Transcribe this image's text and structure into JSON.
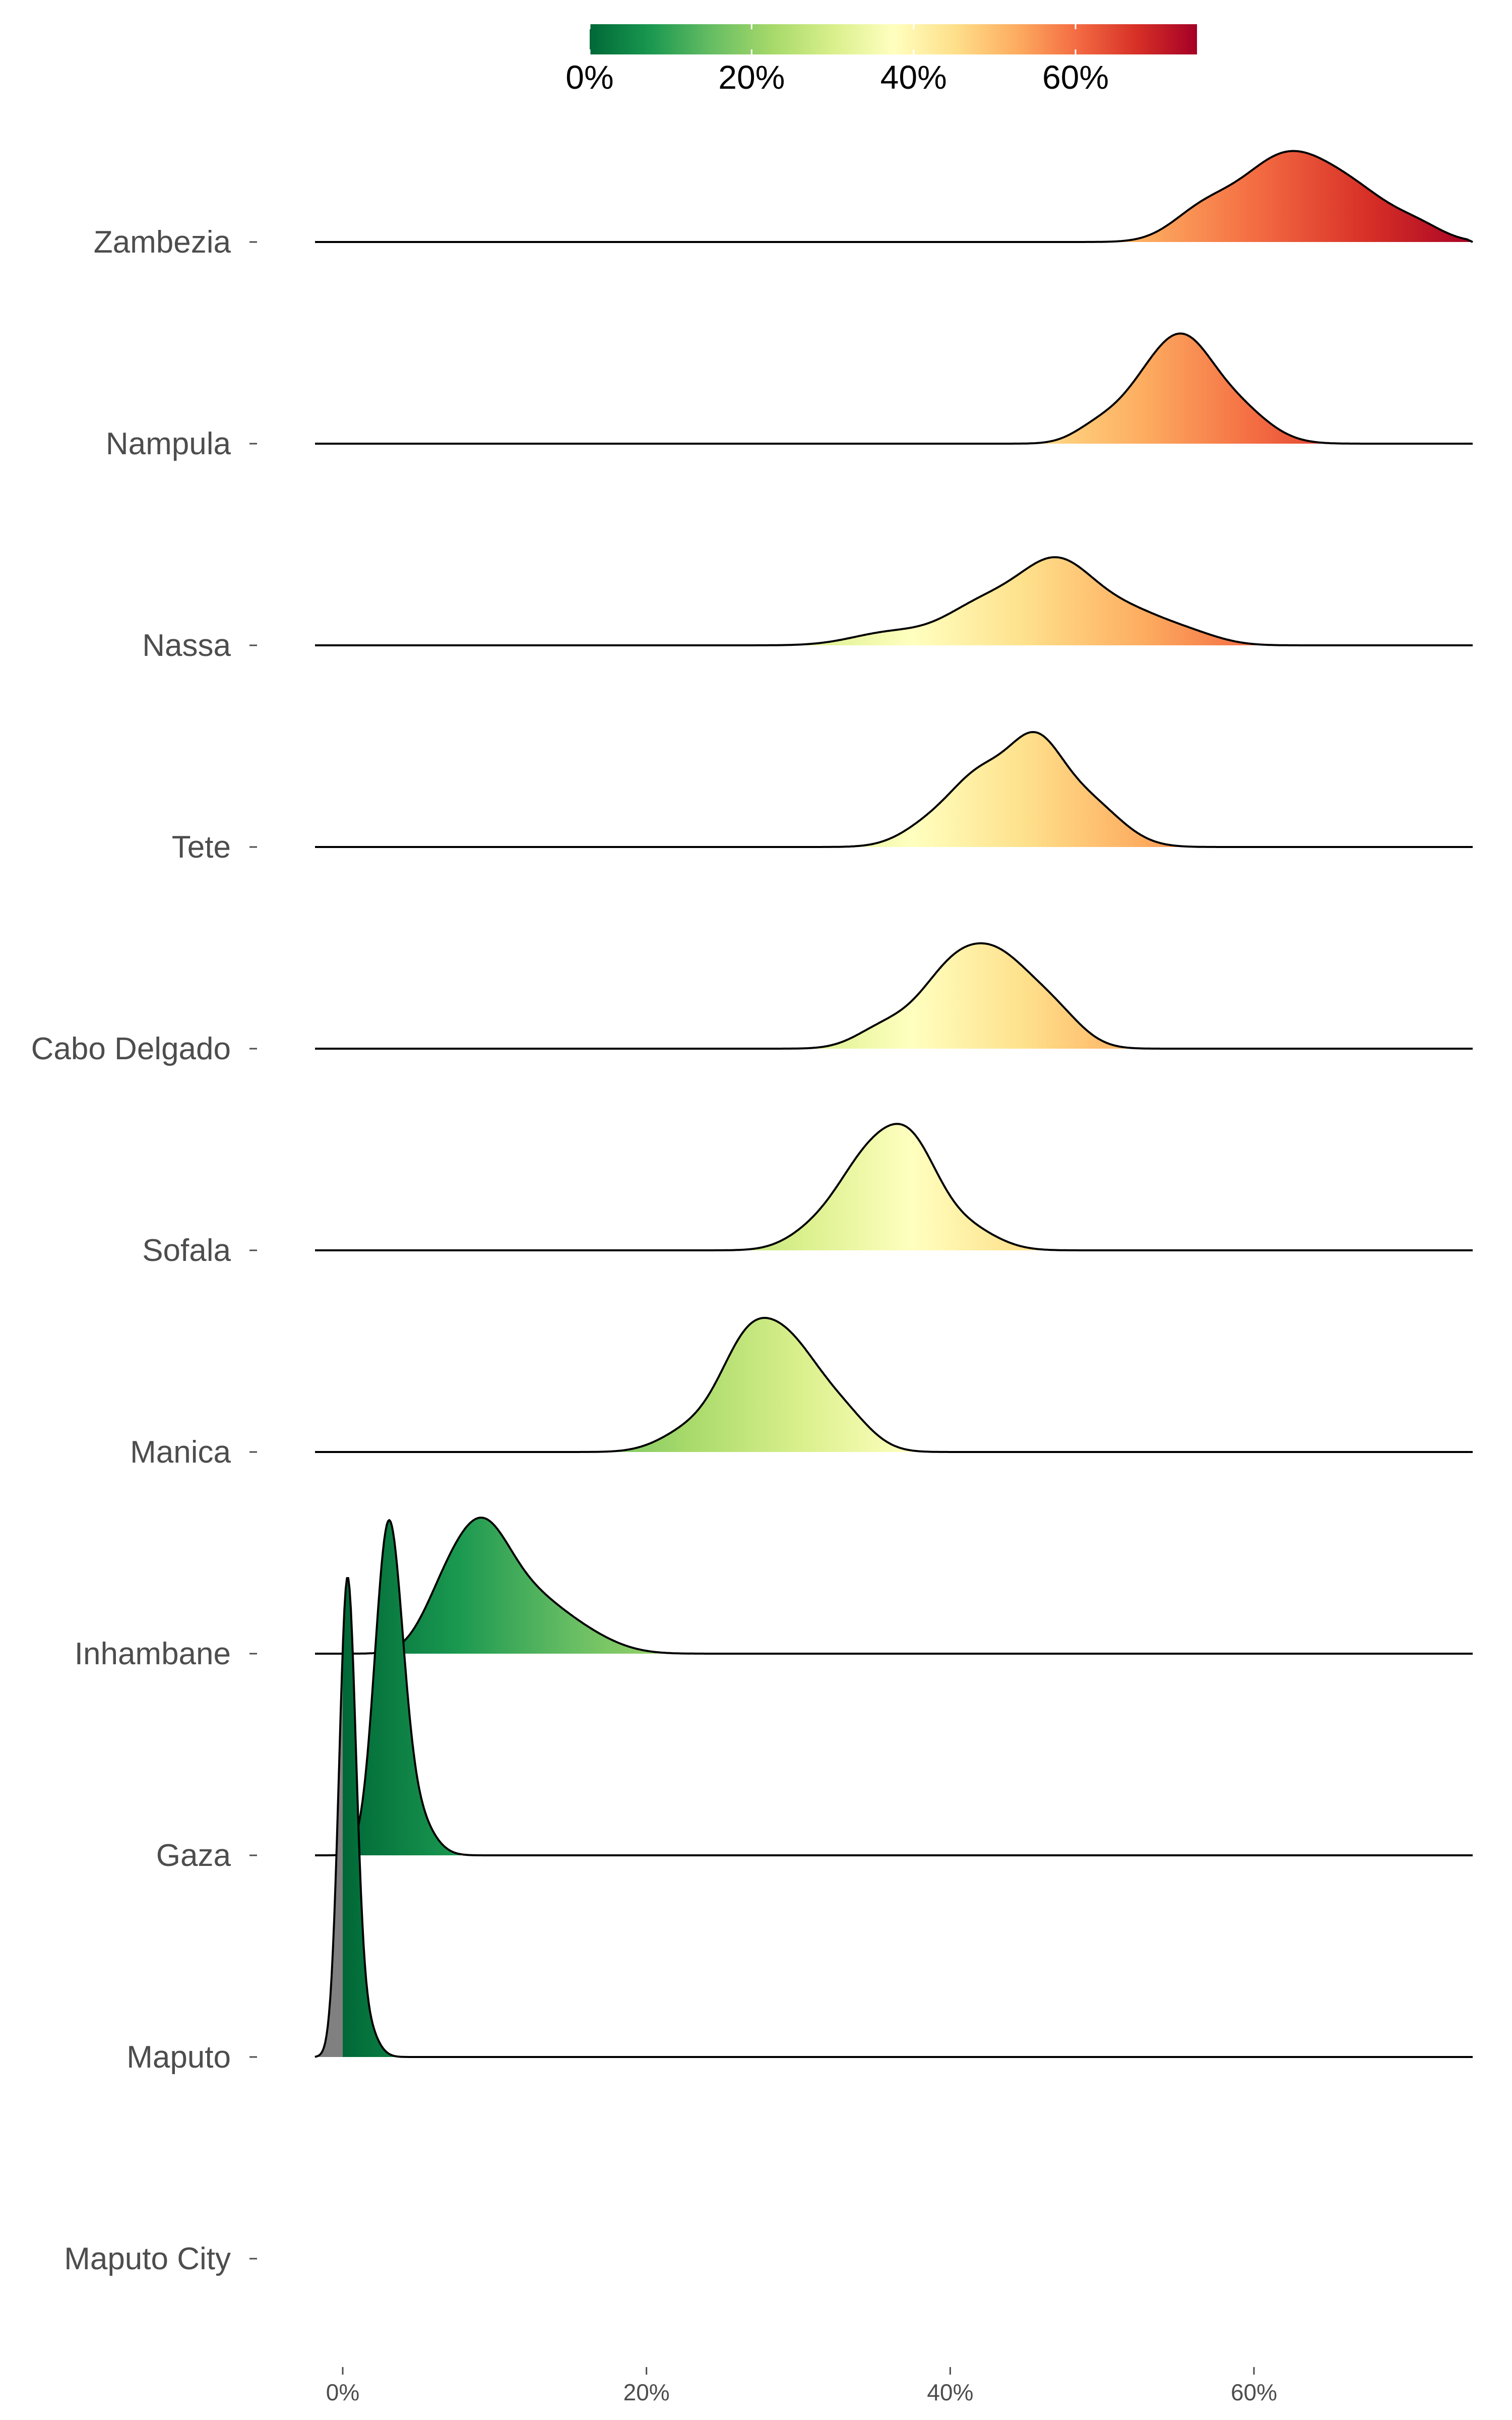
{
  "chart_data": {
    "type": "ridgeline",
    "x_unit": "%",
    "xlim": [
      -2,
      74
    ],
    "x_ticks": [
      0,
      20,
      40,
      60
    ],
    "x_tick_labels": [
      "0%",
      "20%",
      "40%",
      "60%"
    ],
    "categories": [
      "Zambezia",
      "Nampula",
      "Nassa",
      "Tete",
      "Cabo Delgado",
      "Sofala",
      "Manica",
      "Inhambane",
      "Gaza",
      "Maputo",
      "Maputo City"
    ],
    "distributions": [
      {
        "region": "Zambezia",
        "peaks": [
          {
            "mu": 56.5,
            "sigma": 2.0,
            "w": 0.3
          },
          {
            "mu": 62,
            "sigma": 3.0,
            "w": 1.0
          },
          {
            "mu": 67,
            "sigma": 2.6,
            "w": 0.45
          },
          {
            "mu": 71,
            "sigma": 1.6,
            "w": 0.12
          }
        ],
        "height": 0.95
      },
      {
        "region": "Nampula",
        "peaks": [
          {
            "mu": 49.5,
            "sigma": 1.5,
            "w": 0.15
          },
          {
            "mu": 53,
            "sigma": 2.0,
            "w": 0.6
          },
          {
            "mu": 55.5,
            "sigma": 1.8,
            "w": 0.8
          },
          {
            "mu": 58.5,
            "sigma": 2.2,
            "w": 0.45
          }
        ],
        "height": 1.15
      },
      {
        "region": "Nassa",
        "peaks": [
          {
            "mu": 36,
            "sigma": 2.5,
            "w": 0.15
          },
          {
            "mu": 42,
            "sigma": 2.5,
            "w": 0.45
          },
          {
            "mu": 47,
            "sigma": 2.5,
            "w": 0.95
          },
          {
            "mu": 52,
            "sigma": 2.5,
            "w": 0.35
          },
          {
            "mu": 56,
            "sigma": 2.0,
            "w": 0.1
          }
        ],
        "height": 0.92
      },
      {
        "region": "Tete",
        "peaks": [
          {
            "mu": 39,
            "sigma": 2.0,
            "w": 0.25
          },
          {
            "mu": 42,
            "sigma": 1.8,
            "w": 0.6
          },
          {
            "mu": 45.5,
            "sigma": 1.8,
            "w": 0.95
          },
          {
            "mu": 49,
            "sigma": 2.2,
            "w": 0.45
          }
        ],
        "height": 1.2
      },
      {
        "region": "Cabo Delgado",
        "peaks": [
          {
            "mu": 35.5,
            "sigma": 1.8,
            "w": 0.2
          },
          {
            "mu": 40,
            "sigma": 2.2,
            "w": 0.75
          },
          {
            "mu": 43.5,
            "sigma": 2.2,
            "w": 0.8
          },
          {
            "mu": 47,
            "sigma": 1.8,
            "w": 0.3
          }
        ],
        "height": 1.1
      },
      {
        "region": "Sofala",
        "peaks": [
          {
            "mu": 31,
            "sigma": 1.8,
            "w": 0.15
          },
          {
            "mu": 34.5,
            "sigma": 2.0,
            "w": 0.75
          },
          {
            "mu": 37.5,
            "sigma": 1.8,
            "w": 0.8
          },
          {
            "mu": 41,
            "sigma": 2.0,
            "w": 0.2
          }
        ],
        "height": 1.32
      },
      {
        "region": "Manica",
        "peaks": [
          {
            "mu": 23,
            "sigma": 2.0,
            "w": 0.2
          },
          {
            "mu": 26.5,
            "sigma": 1.8,
            "w": 0.8
          },
          {
            "mu": 29.5,
            "sigma": 2.0,
            "w": 0.85
          },
          {
            "mu": 33,
            "sigma": 1.8,
            "w": 0.3
          }
        ],
        "height": 1.4
      },
      {
        "region": "Inhambane",
        "peaks": [
          {
            "mu": 6.5,
            "sigma": 1.5,
            "w": 0.35
          },
          {
            "mu": 9,
            "sigma": 1.8,
            "w": 0.9
          },
          {
            "mu": 12,
            "sigma": 2.5,
            "w": 0.5
          },
          {
            "mu": 16,
            "sigma": 2.2,
            "w": 0.12
          }
        ],
        "height": 1.42
      },
      {
        "region": "Gaza",
        "peaks": [
          {
            "mu": 3,
            "sigma": 0.9,
            "w": 1.0
          },
          {
            "mu": 4.5,
            "sigma": 1.2,
            "w": 0.15
          }
        ],
        "height": 3.5
      },
      {
        "region": "Maputo",
        "peaks": [
          {
            "mu": 0.3,
            "sigma": 0.55,
            "w": 1.0
          },
          {
            "mu": 1.2,
            "sigma": 0.8,
            "w": 0.1
          }
        ],
        "height": 5.0
      },
      {
        "region": "Maputo City",
        "peaks": [],
        "height": 0
      }
    ],
    "fill_scale": {
      "type": "gradient",
      "palette": "RdYlGn reversed",
      "colors": [
        "#006837",
        "#1a9850",
        "#66bd63",
        "#a6d96a",
        "#d9ef8b",
        "#ffffbf",
        "#fee08b",
        "#fdae61",
        "#f46d43",
        "#d73027",
        "#a50026"
      ],
      "domain": [
        0,
        75
      ],
      "below_zero_color": "#808080",
      "legend_ticks": [
        0,
        20,
        40,
        60
      ],
      "legend_labels": [
        "0%",
        "20%",
        "40%",
        "60%"
      ],
      "legend_position": "top"
    },
    "grid": false,
    "title": "",
    "xlabel": "",
    "ylabel": ""
  }
}
